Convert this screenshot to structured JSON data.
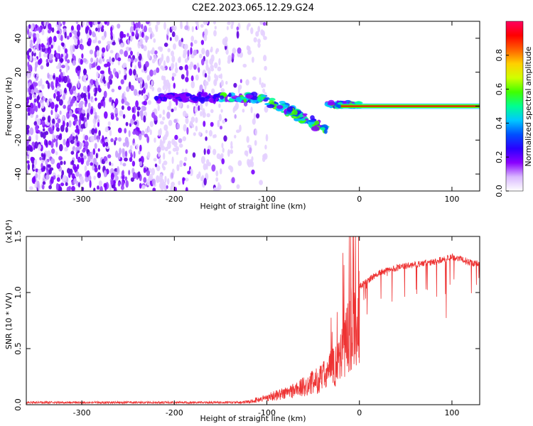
{
  "figure": {
    "title": "C2E2.2023.065.12.29.G24"
  },
  "chart_data": [
    {
      "type": "heatmap",
      "panel": "top",
      "title": "C2E2.2023.065.12.29.G24",
      "xlabel": "Height of straight line (km)",
      "ylabel": "Frequency (Hz)",
      "xlim": [
        -360,
        130
      ],
      "ylim": [
        -50,
        50
      ],
      "x_ticks": [
        -300,
        -200,
        -100,
        0,
        100
      ],
      "x_tick_labels": [
        "-300",
        "-200",
        "-100",
        "0",
        "100"
      ],
      "y_ticks": [
        -40,
        -20,
        0,
        20,
        40
      ],
      "y_tick_labels": [
        "-40",
        "-20",
        "0",
        "20",
        "40"
      ],
      "colorbar": {
        "label": "Normalized spectral amplitude",
        "range": [
          0.0,
          1.0
        ],
        "ticks": [
          0.0,
          0.2,
          0.4,
          0.6,
          0.8
        ],
        "tick_labels": [
          "0.0",
          "0.2",
          "0.4",
          "0.6",
          "0.8"
        ],
        "colors": [
          "#ffffff",
          "#d9b8ff",
          "#8a00ff",
          "#2a00ff",
          "#0050ff",
          "#00c8ff",
          "#00ff90",
          "#40ff00",
          "#d0ff00",
          "#ffd000",
          "#ff6000",
          "#ff0000",
          "#ff0060"
        ]
      },
      "features": {
        "noise_region_x": [
          -360,
          -120
        ],
        "carrier_band": {
          "x": [
            -20,
            130
          ],
          "frequency": 0
        }
      }
    },
    {
      "type": "line",
      "panel": "bottom",
      "xlabel": "Height of straight line (km)",
      "ylabel": "SNR (10 * V/V)",
      "scale_label": "(x10⁴)",
      "xlim": [
        -360,
        130
      ],
      "ylim": [
        0,
        1.5
      ],
      "x_ticks": [
        -300,
        -200,
        -100,
        0,
        100
      ],
      "x_tick_labels": [
        "-300",
        "-200",
        "-100",
        "0",
        "100"
      ],
      "y_ticks": [
        0.0,
        0.5,
        1.0,
        1.5
      ],
      "y_tick_labels": [
        "0.0",
        "0.5",
        "1.0",
        "1.5"
      ],
      "series": [
        {
          "name": "SNR",
          "color": "#ee3333",
          "envelope_x": [
            -360,
            -300,
            -200,
            -150,
            -120,
            -100,
            -80,
            -60,
            -40,
            -25,
            -15,
            -5,
            0,
            20,
            40,
            60,
            80,
            100,
            120,
            130
          ],
          "envelope_y": [
            0.01,
            0.02,
            0.02,
            0.02,
            0.03,
            0.08,
            0.13,
            0.2,
            0.3,
            0.45,
            0.7,
            0.95,
            1.05,
            1.17,
            1.22,
            1.25,
            1.27,
            1.32,
            1.27,
            1.25
          ]
        }
      ]
    }
  ]
}
